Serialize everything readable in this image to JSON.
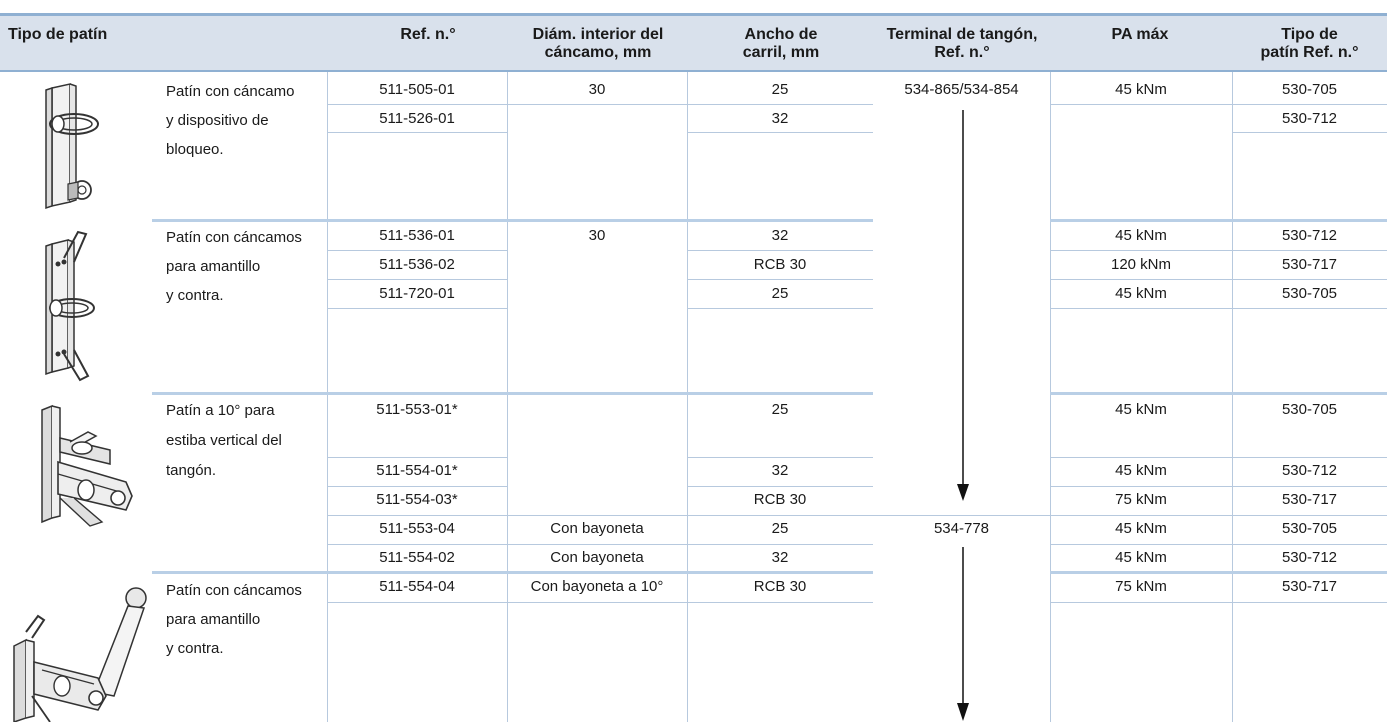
{
  "headers": [
    "Tipo de patín",
    "Ref. n.°",
    "Diám. interior del cáncamo, mm",
    "Ancho de carril, mm",
    "Terminal de tangón, Ref. n.°",
    "PA máx",
    "Tipo de patín Ref. n.°"
  ],
  "headers_split": {
    "diam": [
      "Diám. interior del",
      "cáncamo, mm"
    ],
    "ancho": [
      "Ancho de",
      "carril, mm"
    ],
    "terminal": [
      "Terminal de tangón,",
      "Ref. n.°"
    ],
    "tipo_ref": [
      "Tipo de",
      "patín Ref. n.°"
    ]
  },
  "groups": [
    {
      "description_lines": [
        "Patín con cáncamo",
        "y dispositivo de",
        "bloqueo."
      ],
      "image": "car-with-eye-and-lock-icon"
    },
    {
      "description_lines": [
        "Patín con cáncamos",
        "para amantillo",
        "y contra."
      ],
      "image": "car-with-two-eyes-icon"
    },
    {
      "description_lines": [
        "Patín a 10° para",
        "estiba vertical del",
        "tangón."
      ],
      "image": "car-10-degree-stowage-icon"
    },
    {
      "description_lines": [
        "Patín con cáncamos",
        "para amantillo",
        "y contra."
      ],
      "image": "car-with-bayonet-fitting-icon"
    }
  ],
  "rows": [
    {
      "ref": "511-505-01",
      "diam": "30",
      "ancho": "25",
      "terminal": "534-865/534-854",
      "pa": "45 kNm",
      "tipo": "530-705"
    },
    {
      "ref": "511-526-01",
      "diam": "",
      "ancho": "32",
      "terminal": "",
      "pa": "",
      "tipo": "530-712"
    },
    {
      "ref": "511-536-01",
      "diam": "30",
      "ancho": "32",
      "terminal": "",
      "pa": "45 kNm",
      "tipo": "530-712"
    },
    {
      "ref": "511-536-02",
      "diam": "",
      "ancho": "RCB 30",
      "terminal": "",
      "pa": "120 kNm",
      "tipo": "530-717"
    },
    {
      "ref": "511-720-01",
      "diam": "",
      "ancho": "25",
      "terminal": "",
      "pa": "45 kNm",
      "tipo": "530-705"
    },
    {
      "ref": "511-553-01*",
      "diam": "",
      "ancho": "25",
      "terminal": "",
      "pa": "45 kNm",
      "tipo": "530-705"
    },
    {
      "ref": "511-554-01*",
      "diam": "",
      "ancho": "32",
      "terminal": "",
      "pa": "45 kNm",
      "tipo": "530-712"
    },
    {
      "ref": "511-554-03*",
      "diam": "",
      "ancho": "RCB 30",
      "terminal": "",
      "pa": "75 kNm",
      "tipo": "530-717"
    },
    {
      "ref": "511-553-04",
      "diam": "Con bayoneta",
      "ancho": "25",
      "terminal": "534-778",
      "pa": "45 kNm",
      "tipo": "530-705"
    },
    {
      "ref": "511-554-02",
      "diam": "Con bayoneta",
      "ancho": "32",
      "terminal": "",
      "pa": "45 kNm",
      "tipo": "530-712"
    },
    {
      "ref": "511-554-04",
      "diam": "Con bayoneta a 10°",
      "ancho": "RCB 30",
      "terminal": "",
      "pa": "75 kNm",
      "tipo": "530-717"
    }
  ],
  "colors": {
    "header_bg": "#d9e1ec",
    "rule": "#b7c9de",
    "accent": "#8fb0d2"
  }
}
